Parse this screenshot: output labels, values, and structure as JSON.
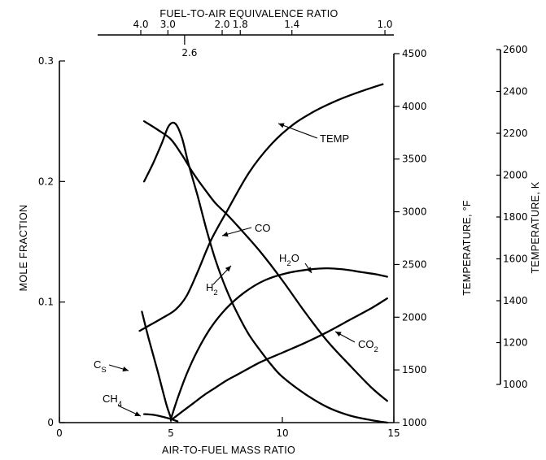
{
  "chart_data": {
    "type": "line",
    "xlabel": "AIR-TO-FUEL MASS RATIO",
    "ylabel": "MOLE FRACTION",
    "xlim": [
      0,
      15
    ],
    "ylim": [
      0,
      0.3
    ],
    "x_ticks": [
      "0",
      "5",
      "10",
      "15"
    ],
    "y_ticks": [
      "0",
      "0.1",
      "0.2",
      "0.3"
    ],
    "top_axis": {
      "label": "FUEL-TO-AIR EQUIVALENCE RATIO",
      "ticks": [
        {
          "value": 4.0,
          "label": "4.0"
        },
        {
          "value": 3.0,
          "label": "3.0"
        },
        {
          "value": 2.6,
          "label": "2.6"
        },
        {
          "value": 2.0,
          "label": "2.0"
        },
        {
          "value": 1.8,
          "label": "1.8"
        },
        {
          "value": 1.4,
          "label": "1.4"
        },
        {
          "value": 1.0,
          "label": "1.0"
        }
      ]
    },
    "right_axis_f": {
      "label": "TEMPERATURE, °F",
      "range": [
        1000,
        4500
      ],
      "ticks": [
        "1000",
        "1500",
        "2000",
        "2500",
        "3000",
        "3500",
        "4000",
        "4500"
      ]
    },
    "right_axis_k": {
      "label": "TEMPERATURE, K",
      "range": [
        1000,
        2600
      ],
      "ticks": [
        "1000",
        "1200",
        "1400",
        "1600",
        "1800",
        "2000",
        "2200",
        "2400",
        "2600"
      ]
    },
    "series": [
      {
        "name": "TEMP",
        "y_unit": "°F",
        "x": [
          3.6,
          4.1,
          4.6,
          5.2,
          5.7,
          6.2,
          6.8,
          7.5,
          8.5,
          9.5,
          10.5,
          11.5,
          12.5,
          13.5,
          14.5
        ],
        "y": [
          1870,
          1930,
          1990,
          2070,
          2200,
          2430,
          2730,
          3000,
          3370,
          3640,
          3830,
          3960,
          4060,
          4140,
          4210
        ]
      },
      {
        "name": "CO",
        "x": [
          3.8,
          4.4,
          5.0,
          5.5,
          6.0,
          6.5,
          7.0,
          7.5,
          8.0,
          9.0,
          10.0,
          11.0,
          12.0,
          13.0,
          14.0,
          14.7
        ],
        "y": [
          0.25,
          0.243,
          0.235,
          0.222,
          0.207,
          0.194,
          0.182,
          0.173,
          0.163,
          0.142,
          0.118,
          0.092,
          0.068,
          0.048,
          0.029,
          0.018
        ]
      },
      {
        "name": "H2",
        "x": [
          3.8,
          4.2,
          4.6,
          4.9,
          5.2,
          5.5,
          5.8,
          6.2,
          6.6,
          7.0,
          7.5,
          8.0,
          8.5,
          9.0,
          9.5,
          10.0,
          11.0,
          12.0,
          13.0,
          14.0,
          14.7
        ],
        "y": [
          0.2,
          0.215,
          0.232,
          0.246,
          0.248,
          0.236,
          0.214,
          0.188,
          0.16,
          0.135,
          0.11,
          0.09,
          0.073,
          0.06,
          0.048,
          0.038,
          0.024,
          0.013,
          0.006,
          0.002,
          0.0
        ]
      },
      {
        "name": "H2O",
        "x": [
          5.0,
          5.3,
          5.7,
          6.2,
          6.8,
          7.5,
          8.3,
          9.2,
          10.2,
          11.2,
          12.0,
          12.8,
          13.5,
          14.2,
          14.7
        ],
        "y": [
          0.003,
          0.02,
          0.04,
          0.06,
          0.079,
          0.095,
          0.108,
          0.118,
          0.124,
          0.127,
          0.128,
          0.127,
          0.125,
          0.123,
          0.121
        ]
      },
      {
        "name": "CO2",
        "x": [
          5.0,
          5.5,
          6.0,
          6.5,
          7.0,
          7.5,
          8.0,
          9.0,
          10.0,
          11.0,
          12.0,
          13.0,
          14.0,
          14.7
        ],
        "y": [
          0.002,
          0.009,
          0.016,
          0.023,
          0.029,
          0.035,
          0.04,
          0.05,
          0.058,
          0.066,
          0.075,
          0.085,
          0.095,
          0.103
        ]
      },
      {
        "name": "CS",
        "x": [
          3.7,
          4.0,
          4.4,
          4.8,
          5.0
        ],
        "y": [
          0.092,
          0.07,
          0.043,
          0.015,
          0.004
        ]
      },
      {
        "name": "CH4",
        "x": [
          3.8,
          4.2,
          4.6,
          5.0,
          5.3
        ],
        "y": [
          0.007,
          0.0065,
          0.005,
          0.003,
          0.001
        ]
      }
    ],
    "annotations": [
      {
        "text": "TEMP",
        "sub": ""
      },
      {
        "text": "CO",
        "sub": ""
      },
      {
        "text": "H",
        "sub": "2"
      },
      {
        "text": "H",
        "sub": "2",
        "tail": "O"
      },
      {
        "text": "CO",
        "sub": "2"
      },
      {
        "text": "C",
        "sub": "S"
      },
      {
        "text": "CH",
        "sub": "4"
      }
    ],
    "grid": false
  }
}
